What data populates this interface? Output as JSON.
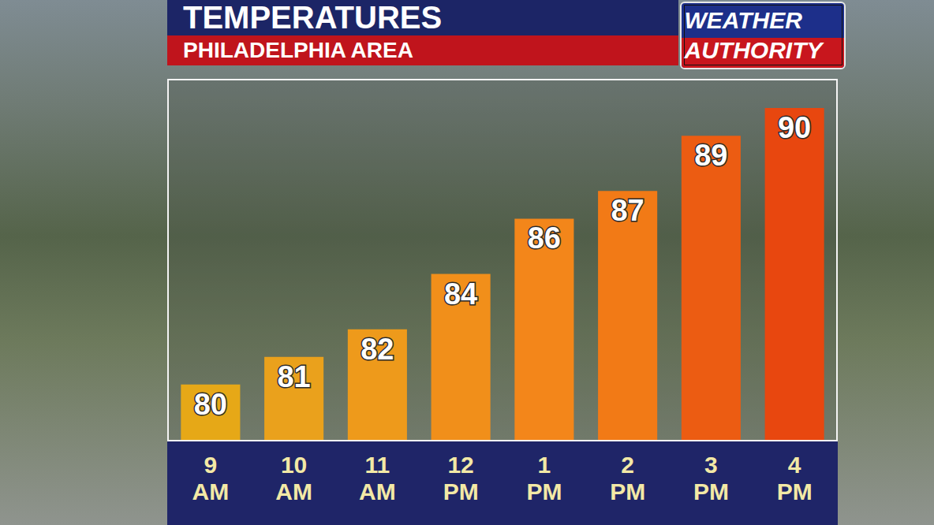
{
  "chart_data": {
    "type": "bar",
    "title": "TEMPERATURES",
    "subtitle": "PHILADELPHIA AREA",
    "annotations": [
      "WEATHER AUTHORITY"
    ],
    "categories": [
      "9 AM",
      "10 AM",
      "11 AM",
      "12 PM",
      "1 PM",
      "2 PM",
      "3 PM",
      "4 PM"
    ],
    "values": [
      80,
      81,
      82,
      84,
      86,
      87,
      89,
      90
    ],
    "colors": [
      "#e6a817",
      "#eaa11c",
      "#ee9a1b",
      "#f18f1a",
      "#f3861a",
      "#f27a16",
      "#ec5c12",
      "#e8470f"
    ],
    "ylim": [
      78,
      91
    ],
    "grid": false,
    "data_labels": true,
    "tick_labels": "x"
  }
}
